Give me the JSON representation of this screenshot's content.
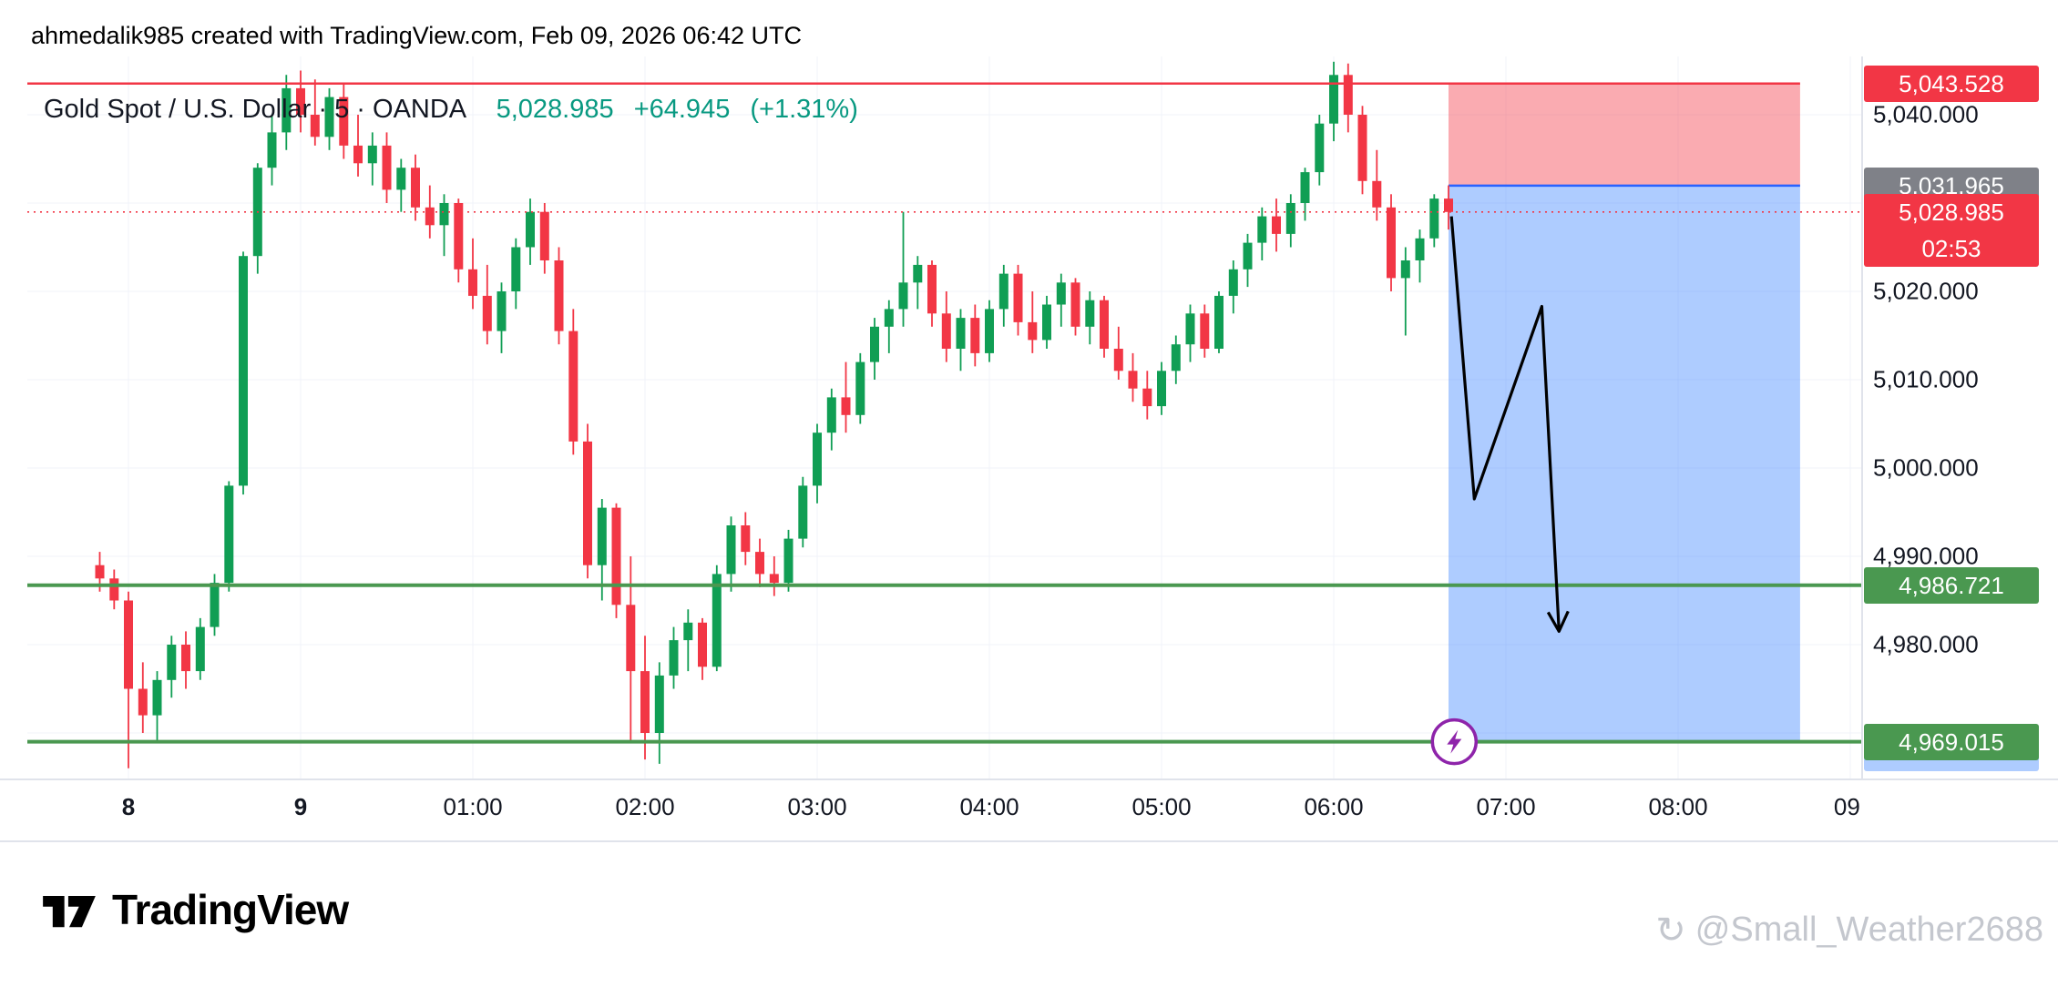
{
  "header": {
    "attribution": "ahmedalik985 created with TradingView.com, Feb 09, 2026 06:42 UTC"
  },
  "legend": {
    "symbol_title": "Gold Spot / U.S. Dollar · 5 · OANDA",
    "last_price": "5,028.985",
    "change": "+64.945",
    "change_pct": "(+1.31%)"
  },
  "chart_data": {
    "type": "candlestick",
    "title": "Gold Spot / U.S. Dollar",
    "interval": "5",
    "exchange": "OANDA",
    "interval_minutes": 5,
    "start_time": "22:50",
    "ylim": [
      4964.1,
      5044.7
    ],
    "grid": {
      "h_values": [
        5040,
        5030,
        5020,
        5010,
        5000,
        4990,
        4980,
        4970
      ]
    },
    "colors": {
      "up": "#109e54",
      "down": "#f23645",
      "stop_zone": "rgba(242,54,69,0.42)",
      "profit_zone": "rgba(41,121,255,0.38)",
      "entry_line": "#2962ff",
      "grid": "#f0f3fa"
    },
    "candles": [
      [
        4989,
        4990.5,
        4986,
        4987.5
      ],
      [
        4987.5,
        4988.5,
        4984,
        4985
      ],
      [
        4985,
        4986,
        4966,
        4975
      ],
      [
        4975,
        4978,
        4970,
        4972
      ],
      [
        4972,
        4977,
        4969,
        4976
      ],
      [
        4976,
        4981,
        4974,
        4980
      ],
      [
        4980,
        4981.5,
        4975,
        4977
      ],
      [
        4977,
        4983,
        4976,
        4982
      ],
      [
        4982,
        4988,
        4981,
        4987
      ],
      [
        4987,
        4998.5,
        4986,
        4998
      ],
      [
        4998,
        5024.5,
        4997,
        5024
      ],
      [
        5024,
        5034.5,
        5022,
        5034
      ],
      [
        5034,
        5040,
        5032,
        5038
      ],
      [
        5038,
        5044.5,
        5036,
        5043
      ],
      [
        5043,
        5045,
        5038,
        5040
      ],
      [
        5040,
        5044,
        5036.5,
        5037.5
      ],
      [
        5037.5,
        5043,
        5036,
        5042
      ],
      [
        5042,
        5043.5,
        5035,
        5036.5
      ],
      [
        5036.5,
        5040,
        5033,
        5034.5
      ],
      [
        5034.5,
        5038,
        5032,
        5036.5
      ],
      [
        5036.5,
        5038,
        5030,
        5031.5
      ],
      [
        5031.5,
        5035,
        5029,
        5034
      ],
      [
        5034,
        5035.5,
        5028,
        5029.5
      ],
      [
        5029.5,
        5032,
        5026,
        5027.5
      ],
      [
        5027.5,
        5031,
        5024,
        5030
      ],
      [
        5030,
        5030.5,
        5021,
        5022.5
      ],
      [
        5022.5,
        5026,
        5018,
        5019.5
      ],
      [
        5019.5,
        5023,
        5014,
        5015.5
      ],
      [
        5015.5,
        5021,
        5013,
        5020
      ],
      [
        5020,
        5026,
        5018,
        5025
      ],
      [
        5025,
        5030.5,
        5023,
        5029
      ],
      [
        5029,
        5030,
        5022,
        5023.5
      ],
      [
        5023.5,
        5025,
        5014,
        5015.5
      ],
      [
        5015.5,
        5018,
        5001.5,
        5003
      ],
      [
        5003,
        5005,
        4987.5,
        4989
      ],
      [
        4989,
        4996.5,
        4985,
        4995.5
      ],
      [
        4995.5,
        4996,
        4983,
        4984.5
      ],
      [
        4984.5,
        4990,
        4969,
        4977
      ],
      [
        4977,
        4981,
        4967,
        4970
      ],
      [
        4970,
        4978,
        4966.5,
        4976.5
      ],
      [
        4976.5,
        4982,
        4975,
        4980.5
      ],
      [
        4980.5,
        4984,
        4977,
        4982.5
      ],
      [
        4982.5,
        4983,
        4976,
        4977.5
      ],
      [
        4977.5,
        4989,
        4977,
        4988
      ],
      [
        4988,
        4994.5,
        4986,
        4993.5
      ],
      [
        4993.5,
        4995,
        4989,
        4990.5
      ],
      [
        4990.5,
        4992,
        4986.5,
        4988
      ],
      [
        4988,
        4990,
        4985.5,
        4987
      ],
      [
        4987,
        4993,
        4986,
        4992
      ],
      [
        4992,
        4999,
        4991,
        4998
      ],
      [
        4998,
        5005,
        4996,
        5004
      ],
      [
        5004,
        5009,
        5002,
        5008
      ],
      [
        5008,
        5012,
        5004,
        5006
      ],
      [
        5006,
        5013,
        5005,
        5012
      ],
      [
        5012,
        5017,
        5010,
        5016
      ],
      [
        5016,
        5019,
        5013,
        5018
      ],
      [
        5018,
        5029,
        5016,
        5021
      ],
      [
        5021,
        5024,
        5018,
        5023
      ],
      [
        5023,
        5023.5,
        5016,
        5017.5
      ],
      [
        5017.5,
        5020,
        5012,
        5013.5
      ],
      [
        5013.5,
        5018,
        5011,
        5017
      ],
      [
        5017,
        5018.5,
        5011.5,
        5013
      ],
      [
        5013,
        5019,
        5012,
        5018
      ],
      [
        5018,
        5023,
        5016,
        5022
      ],
      [
        5022,
        5023,
        5015,
        5016.5
      ],
      [
        5016.5,
        5020,
        5013,
        5014.5
      ],
      [
        5014.5,
        5019.5,
        5013.5,
        5018.5
      ],
      [
        5018.5,
        5022,
        5016,
        5021
      ],
      [
        5021,
        5021.5,
        5015,
        5016
      ],
      [
        5016,
        5020,
        5014,
        5019
      ],
      [
        5019,
        5019.5,
        5012.5,
        5013.5
      ],
      [
        5013.5,
        5016,
        5010,
        5011
      ],
      [
        5011,
        5013,
        5007.5,
        5009
      ],
      [
        5009,
        5011,
        5005.5,
        5007
      ],
      [
        5007,
        5012,
        5006,
        5011
      ],
      [
        5011,
        5015,
        5009.5,
        5014
      ],
      [
        5014,
        5018.5,
        5012,
        5017.5
      ],
      [
        5017.5,
        5018.5,
        5012.5,
        5013.5
      ],
      [
        5013.5,
        5020,
        5013,
        5019.5
      ],
      [
        5019.5,
        5023.5,
        5017.5,
        5022.5
      ],
      [
        5022.5,
        5026.5,
        5020.5,
        5025.5
      ],
      [
        5025.5,
        5029.5,
        5023.5,
        5028.5
      ],
      [
        5028.5,
        5030.5,
        5024.5,
        5026.5
      ],
      [
        5026.5,
        5031,
        5025,
        5030
      ],
      [
        5030,
        5034,
        5028,
        5033.5
      ],
      [
        5033.5,
        5040,
        5032,
        5039
      ],
      [
        5039,
        5046,
        5037,
        5044.5
      ],
      [
        5044.5,
        5045.8,
        5038,
        5040
      ],
      [
        5040,
        5041,
        5031,
        5032.5
      ],
      [
        5032.5,
        5036,
        5028,
        5029.5
      ],
      [
        5029.5,
        5031,
        5020,
        5021.5
      ],
      [
        5021.5,
        5025,
        5015,
        5023.5
      ],
      [
        5023.5,
        5027,
        5021,
        5026
      ],
      [
        5026,
        5031,
        5025,
        5030.5
      ],
      [
        5030.5,
        5032,
        5027,
        5028.985
      ]
    ],
    "position_tool": {
      "type": "short",
      "entry": 5031.965,
      "stop": 5043.528,
      "target": 4969.015,
      "start_index": 94,
      "end_index": 118.5
    },
    "levels": [
      {
        "price": 5043.528,
        "color": "#f23645",
        "style": "solid",
        "width": 2.5,
        "extent": "tool"
      },
      {
        "price": 5028.985,
        "color": "#f23645",
        "style": "dotted",
        "width": 1.6,
        "extent": "full"
      },
      {
        "price": 4986.721,
        "color": "#4a9850",
        "style": "solid",
        "width": 4,
        "extent": "full"
      },
      {
        "price": 4969.015,
        "color": "#4a9850",
        "style": "solid",
        "width": 4,
        "extent": "full"
      }
    ],
    "annotations": {
      "arrow": {
        "color": "#000000",
        "points": [
          [
            94.2,
            5028.5
          ],
          [
            95.8,
            4996.5
          ],
          [
            100.5,
            5018.3
          ],
          [
            101.7,
            4981.5
          ]
        ]
      },
      "lightning_marker": {
        "index": 94.4,
        "price": 4969.015,
        "color": "#8e24aa"
      }
    }
  },
  "price_axis": {
    "ticks": [
      {
        "text": "5,040.000",
        "value": 5040
      },
      {
        "text": "5,020.000",
        "value": 5020
      },
      {
        "text": "5,010.000",
        "value": 5010
      },
      {
        "text": "5,000.000",
        "value": 5000
      },
      {
        "text": "4,990.000",
        "value": 4990
      },
      {
        "text": "4,980.000",
        "value": 4980
      }
    ],
    "labels": [
      {
        "name": "stop-price-label",
        "text": "5,043.528",
        "value": 5043.528,
        "bg": "#f23645"
      },
      {
        "name": "entry-price-label",
        "text": "5,031.965",
        "value": 5031.965,
        "bg": "#7f8188"
      },
      {
        "name": "last-price-label",
        "text": "5,028.985",
        "value": 5028.985,
        "bg": "#f23645",
        "countdown": "02:53"
      },
      {
        "name": "support-price-label",
        "text": "4,986.721",
        "value": 4986.721,
        "bg": "#4a9850"
      },
      {
        "name": "target-price-label",
        "text": "4,969.015",
        "value": 4969.015,
        "bg": "#4a9850",
        "peek_color": "#aeccff"
      }
    ]
  },
  "time_axis": {
    "labels": [
      {
        "label": "8",
        "candle_index": 2,
        "bold": true
      },
      {
        "label": "9",
        "candle_index": 14,
        "bold": true
      },
      {
        "label": "01:00",
        "candle_index": 26
      },
      {
        "label": "02:00",
        "candle_index": 38
      },
      {
        "label": "03:00",
        "candle_index": 50
      },
      {
        "label": "04:00",
        "candle_index": 62
      },
      {
        "label": "05:00",
        "candle_index": 74
      },
      {
        "label": "06:00",
        "candle_index": 86
      },
      {
        "label": "07:00",
        "candle_index": 98
      },
      {
        "label": "08:00",
        "candle_index": 110
      },
      {
        "label": "09:",
        "candle_index": 122
      }
    ]
  },
  "footer": {
    "logo_text": "TradingView",
    "watermark_handle": "@Small_Weather2688"
  }
}
